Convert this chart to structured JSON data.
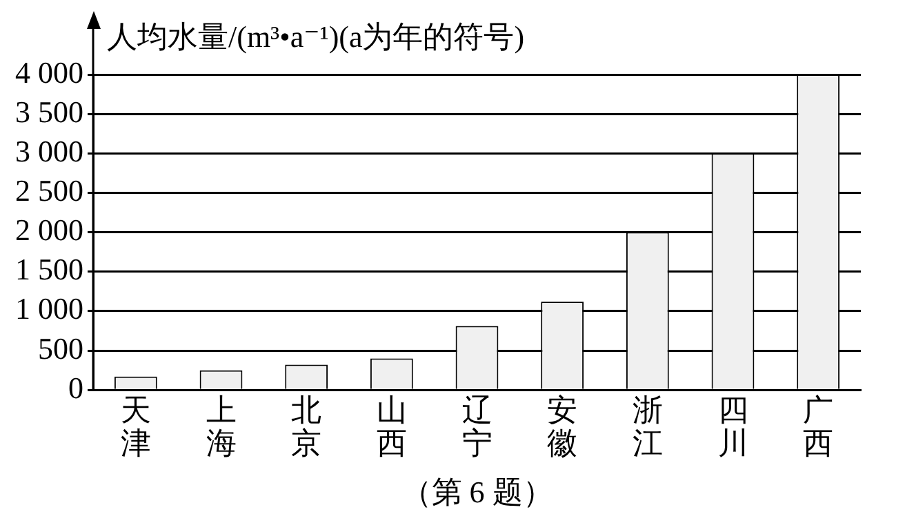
{
  "chart_data": {
    "type": "bar",
    "title": "人均水量/(m³•a⁻¹)(a为年的符号)",
    "categories": [
      "天津",
      "上海",
      "北京",
      "山西",
      "辽宁",
      "安徽",
      "浙江",
      "四川",
      "广西"
    ],
    "values": [
      170,
      250,
      320,
      400,
      810,
      1120,
      2000,
      3000,
      4000
    ],
    "color": "#f0f0f0",
    "ylim": [
      0,
      4000
    ],
    "yticks": [
      0,
      500,
      {
        "value": 1000,
        "label": "1 000"
      },
      {
        "value": 1500,
        "label": "1 500"
      },
      {
        "value": 2000,
        "label": "2 000"
      },
      {
        "value": 2500,
        "label": "2 500"
      },
      {
        "value": 3000,
        "label": "3 000"
      },
      {
        "value": 3500,
        "label": "3 500"
      },
      {
        "value": 4000,
        "label": "4 000"
      }
    ],
    "grid": "y",
    "annotations": [
      "（第 6 题）"
    ]
  }
}
